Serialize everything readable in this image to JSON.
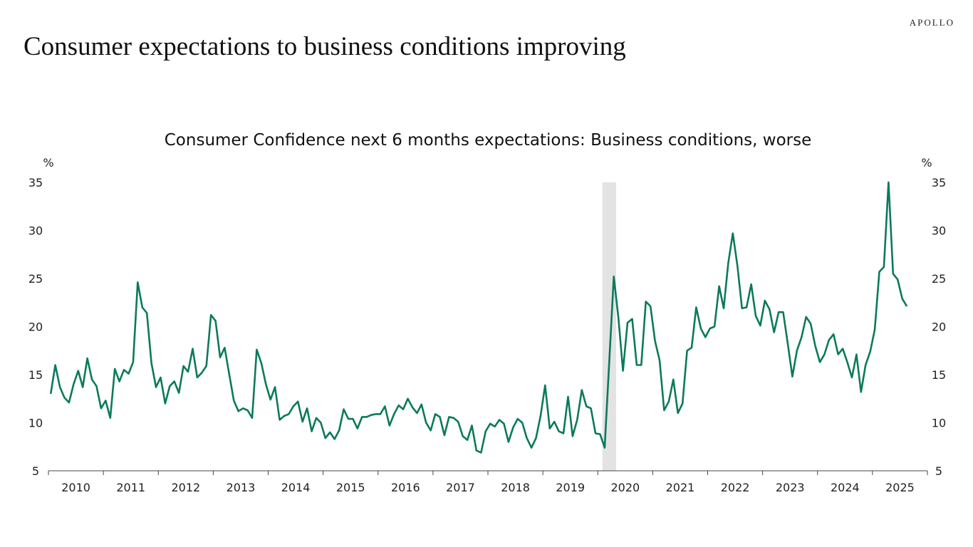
{
  "brand": "APOLLO",
  "page_title": "Consumer expectations to business conditions improving",
  "chart_data": {
    "type": "line",
    "title": "Consumer Confidence next 6 months expectations: Business conditions, worse",
    "ylabel_left": "%",
    "ylabel_right": "%",
    "ylim": [
      5,
      35
    ],
    "yticks": [
      5,
      10,
      15,
      20,
      25,
      30,
      35
    ],
    "xlim": [
      "2010-01",
      "2025-12"
    ],
    "xticks": [
      "2010",
      "2011",
      "2012",
      "2013",
      "2014",
      "2015",
      "2016",
      "2017",
      "2018",
      "2019",
      "2020",
      "2021",
      "2022",
      "2023",
      "2024",
      "2025"
    ],
    "grid": false,
    "line_color": "#0b7a5c",
    "recession_color": "#e3e3e3",
    "recession": {
      "start": "2020-02",
      "end": "2020-04"
    },
    "start_month": "2010-01",
    "frequency": "monthly",
    "values": [
      13.0,
      16.0,
      13.7,
      12.6,
      12.1,
      14.0,
      15.4,
      13.7,
      16.7,
      14.5,
      13.8,
      11.5,
      12.3,
      10.5,
      15.6,
      14.3,
      15.5,
      15.1,
      16.3,
      24.6,
      22.0,
      21.4,
      16.2,
      13.7,
      14.7,
      12.0,
      13.8,
      14.3,
      13.1,
      15.9,
      15.3,
      17.7,
      14.7,
      15.2,
      15.9,
      21.2,
      20.6,
      16.8,
      17.8,
      15.0,
      12.3,
      11.2,
      11.5,
      11.3,
      10.5,
      17.6,
      16.2,
      14.0,
      12.4,
      13.7,
      10.3,
      10.7,
      10.9,
      11.7,
      12.2,
      10.1,
      11.5,
      9.1,
      10.5,
      10.0,
      8.4,
      9.0,
      8.3,
      9.2,
      11.4,
      10.4,
      10.4,
      9.4,
      10.6,
      10.6,
      10.8,
      10.9,
      10.9,
      11.7,
      9.7,
      10.9,
      11.8,
      11.4,
      12.5,
      11.6,
      11.0,
      11.9,
      10.0,
      9.2,
      10.9,
      10.6,
      8.7,
      10.6,
      10.5,
      10.1,
      8.6,
      8.2,
      9.7,
      7.1,
      6.9,
      9.1,
      9.9,
      9.6,
      10.3,
      9.9,
      8.0,
      9.5,
      10.4,
      10.0,
      8.4,
      7.4,
      8.4,
      10.7,
      13.9,
      9.4,
      10.1,
      9.1,
      8.9,
      12.7,
      8.6,
      10.3,
      13.4,
      11.7,
      11.5,
      8.9,
      8.8,
      7.4,
      16.3,
      25.2,
      20.9,
      15.4,
      20.4,
      20.8,
      16.0,
      16.0,
      22.6,
      22.1,
      18.5,
      16.5,
      11.3,
      12.2,
      14.5,
      11.0,
      12.0,
      17.5,
      17.8,
      22.0,
      19.8,
      18.9,
      19.8,
      20.0,
      24.2,
      21.9,
      26.6,
      29.7,
      26.3,
      21.9,
      22.0,
      24.4,
      21.1,
      20.1,
      22.7,
      21.8,
      19.4,
      21.5,
      21.5,
      18.2,
      14.8,
      17.5,
      18.9,
      21.0,
      20.3,
      18.0,
      16.3,
      17.1,
      18.6,
      19.2,
      17.1,
      17.7,
      16.3,
      14.7,
      17.1,
      13.2,
      16.0,
      17.4,
      19.7,
      25.7,
      26.2,
      35.0,
      25.5,
      24.9,
      22.9,
      22.1
    ]
  }
}
